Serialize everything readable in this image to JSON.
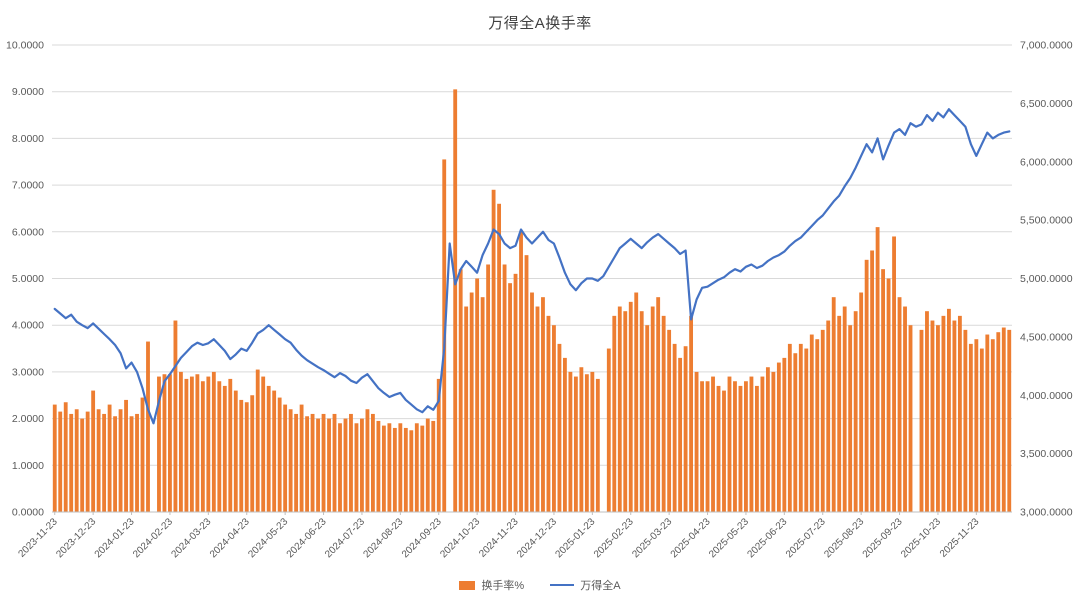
{
  "title": "万得全A换手率",
  "legend_items": [
    {
      "label": "换手率%",
      "color": "#ED7D31",
      "type": "bar"
    },
    {
      "label": "万得全A",
      "color": "#4472C4",
      "type": "line"
    }
  ],
  "chart_data": {
    "type": "bar+line combo",
    "title": "万得全A换手率",
    "grid": true,
    "legend_position": "bottom",
    "x_tick_labels": [
      "2023-11-23",
      "2023-12-23",
      "2024-01-23",
      "2024-02-23",
      "2024-03-23",
      "2024-04-23",
      "2024-05-23",
      "2024-06-23",
      "2024-07-23",
      "2024-08-23",
      "2024-09-23",
      "2024-10-23",
      "2024-11-23",
      "2024-12-23",
      "2025-01-23",
      "2025-02-23",
      "2025-03-23",
      "2025-04-23",
      "2025-05-23",
      "2025-06-23",
      "2025-07-23",
      "2025-08-23",
      "2025-09-23",
      "2025-10-23",
      "2025-11-23"
    ],
    "samples_per_tick": 7,
    "left_axis": {
      "min": 0,
      "max": 10,
      "step": 1,
      "tick_labels": [
        "10.0000",
        "9.0000",
        "8.0000",
        "7.0000",
        "6.0000",
        "5.0000",
        "4.0000",
        "3.0000",
        "2.0000",
        "1.0000",
        "0.0000"
      ]
    },
    "right_axis": {
      "min": 3000,
      "max": 7000,
      "step": 500,
      "tick_labels": [
        "7,000.0000",
        "6,500.0000",
        "6,000.0000",
        "5,500.0000",
        "5,000.0000",
        "4,500.0000",
        "4,000.0000",
        "3,500.0000",
        "3,000.0000"
      ]
    },
    "series": [
      {
        "name": "换手率%",
        "axis": "left",
        "type": "bar",
        "color": "#ED7D31",
        "values": [
          2.3,
          2.15,
          2.35,
          2.1,
          2.2,
          2.0,
          2.15,
          2.6,
          2.2,
          2.1,
          2.3,
          2.05,
          2.2,
          2.4,
          2.05,
          2.1,
          2.45,
          3.65,
          0,
          2.9,
          2.95,
          2.95,
          4.1,
          3.0,
          2.85,
          2.9,
          2.95,
          2.8,
          2.9,
          3.0,
          2.8,
          2.7,
          2.85,
          2.6,
          2.4,
          2.35,
          2.5,
          3.05,
          2.9,
          2.7,
          2.6,
          2.45,
          2.3,
          2.2,
          2.1,
          2.3,
          2.05,
          2.1,
          2.0,
          2.1,
          2.0,
          2.1,
          1.9,
          2.0,
          2.1,
          1.9,
          2.0,
          2.2,
          2.1,
          1.95,
          1.85,
          1.9,
          1.8,
          1.9,
          1.8,
          1.75,
          1.9,
          1.85,
          2.0,
          1.95,
          2.85,
          7.55,
          0,
          9.05,
          5.2,
          4.4,
          4.7,
          5.0,
          4.6,
          5.3,
          6.9,
          6.6,
          5.3,
          4.9,
          5.1,
          6.0,
          5.5,
          4.7,
          4.4,
          4.6,
          4.2,
          4.0,
          3.6,
          3.3,
          3.0,
          2.9,
          3.1,
          2.95,
          3.0,
          2.85,
          0,
          3.5,
          4.2,
          4.4,
          4.3,
          4.5,
          4.7,
          4.3,
          4.0,
          4.4,
          4.6,
          4.2,
          3.9,
          3.6,
          3.3,
          3.55,
          4.2,
          3.0,
          2.8,
          2.8,
          2.9,
          2.7,
          2.6,
          2.9,
          2.8,
          2.7,
          2.8,
          2.9,
          2.7,
          2.9,
          3.1,
          3.0,
          3.2,
          3.3,
          3.6,
          3.4,
          3.6,
          3.5,
          3.8,
          3.7,
          3.9,
          4.1,
          4.6,
          4.2,
          4.4,
          4.0,
          4.3,
          4.7,
          5.4,
          5.6,
          6.1,
          5.2,
          5.0,
          5.9,
          4.6,
          4.4,
          4.0,
          0,
          3.9,
          4.3,
          4.1,
          4.0,
          4.2,
          4.35,
          4.1,
          4.2,
          3.9,
          3.6,
          3.7,
          3.5,
          3.8,
          3.7,
          3.85,
          3.95,
          3.9
        ]
      },
      {
        "name": "万得全A",
        "axis": "right",
        "type": "line",
        "color": "#4472C4",
        "values": [
          4740,
          4700,
          4660,
          4690,
          4630,
          4600,
          4575,
          4615,
          4570,
          4525,
          4480,
          4430,
          4360,
          4230,
          4280,
          4200,
          4060,
          3880,
          3760,
          3950,
          4120,
          4180,
          4250,
          4320,
          4370,
          4420,
          4450,
          4430,
          4445,
          4480,
          4430,
          4380,
          4310,
          4350,
          4400,
          4380,
          4450,
          4530,
          4560,
          4600,
          4560,
          4520,
          4480,
          4450,
          4390,
          4340,
          4300,
          4270,
          4240,
          4215,
          4185,
          4155,
          4190,
          4165,
          4125,
          4105,
          4150,
          4180,
          4120,
          4060,
          4020,
          3985,
          4005,
          4020,
          3960,
          3920,
          3880,
          3855,
          3905,
          3875,
          3950,
          4400,
          5300,
          4950,
          5080,
          5150,
          5100,
          5050,
          5200,
          5300,
          5420,
          5380,
          5300,
          5260,
          5280,
          5420,
          5350,
          5300,
          5350,
          5400,
          5330,
          5300,
          5180,
          5050,
          4950,
          4900,
          4960,
          5000,
          5000,
          4980,
          5020,
          5100,
          5180,
          5260,
          5300,
          5340,
          5300,
          5260,
          5310,
          5350,
          5380,
          5340,
          5300,
          5260,
          5210,
          5240,
          4650,
          4820,
          4920,
          4930,
          4960,
          4990,
          5010,
          5050,
          5080,
          5060,
          5100,
          5120,
          5090,
          5110,
          5150,
          5180,
          5200,
          5230,
          5280,
          5320,
          5350,
          5400,
          5450,
          5500,
          5540,
          5600,
          5660,
          5710,
          5790,
          5860,
          5950,
          6050,
          6150,
          6080,
          6200,
          6020,
          6140,
          6250,
          6280,
          6230,
          6330,
          6300,
          6320,
          6400,
          6350,
          6420,
          6380,
          6450,
          6400,
          6350,
          6300,
          6150,
          6050,
          6150,
          6250,
          6200,
          6230,
          6250,
          6260
        ]
      }
    ]
  }
}
